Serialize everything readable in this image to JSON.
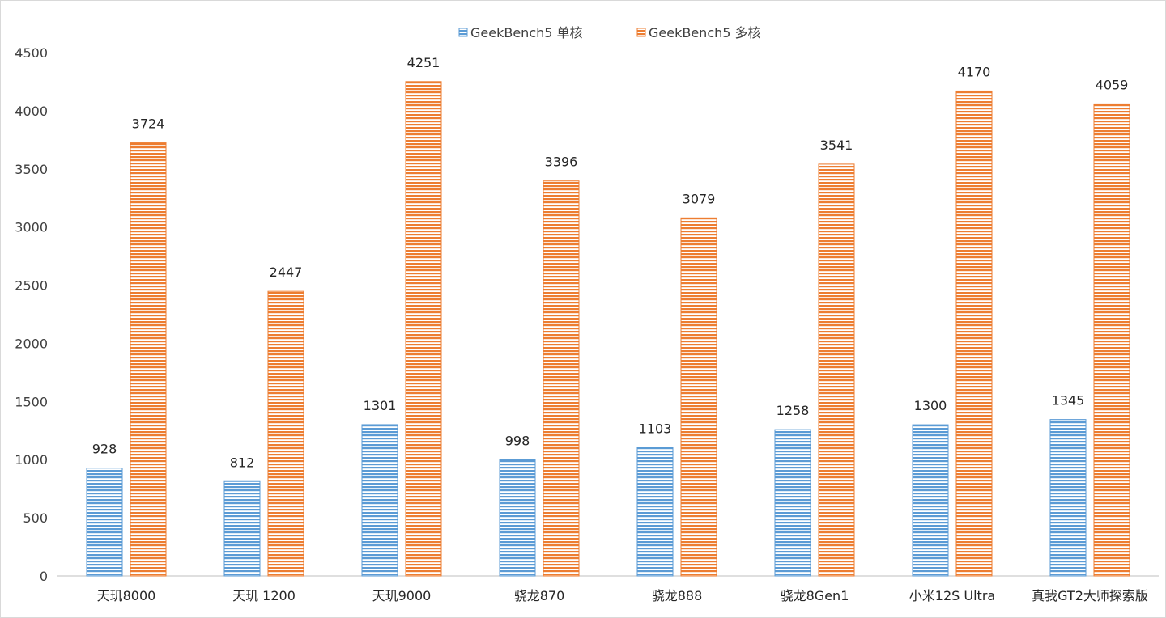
{
  "chart_data": {
    "type": "bar",
    "categories": [
      "天玑8000",
      "天玑 1200",
      "天玑9000",
      "骁龙870",
      "骁龙888",
      "骁龙8Gen1",
      "小米12S Ultra",
      "真我GT2大师探索版"
    ],
    "series": [
      {
        "name": "GeekBench5 单核",
        "color": "#5b9bd5",
        "values": [
          928,
          812,
          1301,
          998,
          1103,
          1258,
          1300,
          1345
        ]
      },
      {
        "name": "GeekBench5 多核",
        "color": "#ed7d31",
        "values": [
          3724,
          2447,
          4251,
          3396,
          3079,
          3541,
          4170,
          4059
        ]
      }
    ],
    "ylim": [
      0,
      4500
    ],
    "yticks": [
      0,
      500,
      1000,
      1500,
      2000,
      2500,
      3000,
      3500,
      4000,
      4500
    ],
    "legend_position": "top-center",
    "grid": false,
    "bar_fill": "horizontal-stripes"
  }
}
